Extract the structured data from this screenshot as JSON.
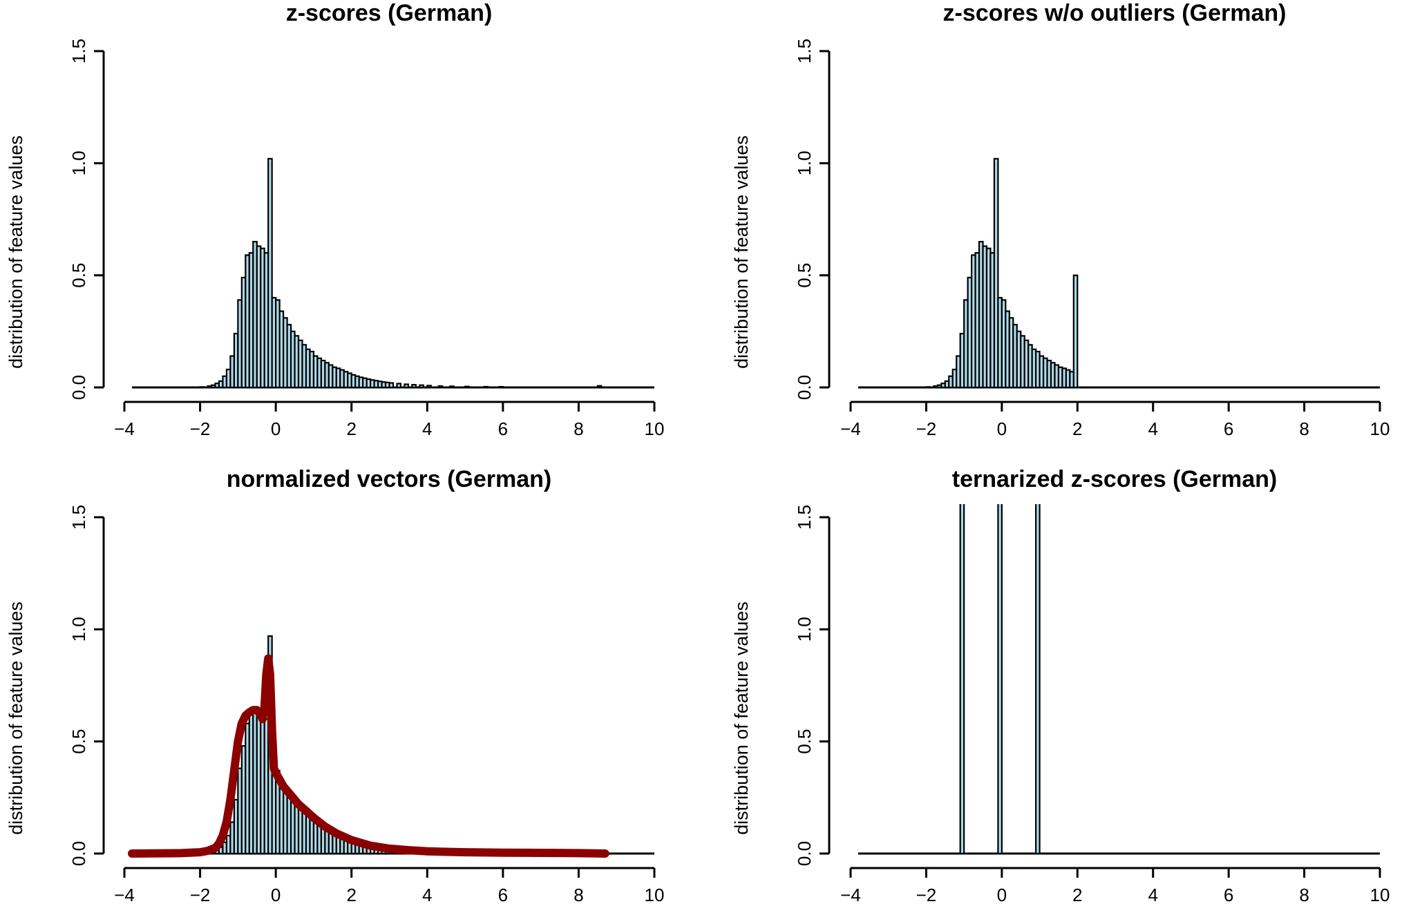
{
  "chart_data": [
    {
      "type": "bar",
      "title": "z-scores (German)",
      "xlabel": "",
      "ylabel": "distribution of feature values",
      "xlim": [
        -4,
        10
      ],
      "ylim": [
        0,
        1.5
      ],
      "xticks": [
        "−4",
        "−2",
        "0",
        "2",
        "4",
        "6",
        "8",
        "10"
      ],
      "yticks": [
        "0.0",
        "0.5",
        "1.0",
        "1.5"
      ],
      "bin_width": 0.1,
      "histogram": [
        {
          "x": -3.8,
          "y": 0.0
        },
        {
          "x": -2.0,
          "y": 0.002
        },
        {
          "x": -1.8,
          "y": 0.006
        },
        {
          "x": -1.7,
          "y": 0.01
        },
        {
          "x": -1.6,
          "y": 0.018
        },
        {
          "x": -1.5,
          "y": 0.028
        },
        {
          "x": -1.4,
          "y": 0.05
        },
        {
          "x": -1.3,
          "y": 0.08
        },
        {
          "x": -1.2,
          "y": 0.14
        },
        {
          "x": -1.1,
          "y": 0.24
        },
        {
          "x": -1.0,
          "y": 0.39
        },
        {
          "x": -0.9,
          "y": 0.49
        },
        {
          "x": -0.8,
          "y": 0.59
        },
        {
          "x": -0.7,
          "y": 0.6
        },
        {
          "x": -0.6,
          "y": 0.65
        },
        {
          "x": -0.5,
          "y": 0.63
        },
        {
          "x": -0.4,
          "y": 0.62
        },
        {
          "x": -0.3,
          "y": 0.6
        },
        {
          "x": -0.2,
          "y": 1.02
        },
        {
          "x": -0.1,
          "y": 0.4
        },
        {
          "x": 0.0,
          "y": 0.39
        },
        {
          "x": 0.1,
          "y": 0.34
        },
        {
          "x": 0.2,
          "y": 0.31
        },
        {
          "x": 0.3,
          "y": 0.28
        },
        {
          "x": 0.4,
          "y": 0.25
        },
        {
          "x": 0.5,
          "y": 0.23
        },
        {
          "x": 0.6,
          "y": 0.21
        },
        {
          "x": 0.7,
          "y": 0.19
        },
        {
          "x": 0.8,
          "y": 0.17
        },
        {
          "x": 0.9,
          "y": 0.16
        },
        {
          "x": 1.0,
          "y": 0.14
        },
        {
          "x": 1.1,
          "y": 0.13
        },
        {
          "x": 1.2,
          "y": 0.12
        },
        {
          "x": 1.3,
          "y": 0.11
        },
        {
          "x": 1.4,
          "y": 0.1
        },
        {
          "x": 1.5,
          "y": 0.09
        },
        {
          "x": 1.6,
          "y": 0.085
        },
        {
          "x": 1.7,
          "y": 0.078
        },
        {
          "x": 1.8,
          "y": 0.07
        },
        {
          "x": 1.9,
          "y": 0.063
        },
        {
          "x": 2.0,
          "y": 0.056
        },
        {
          "x": 2.1,
          "y": 0.05
        },
        {
          "x": 2.2,
          "y": 0.045
        },
        {
          "x": 2.3,
          "y": 0.041
        },
        {
          "x": 2.4,
          "y": 0.037
        },
        {
          "x": 2.5,
          "y": 0.033
        },
        {
          "x": 2.6,
          "y": 0.03
        },
        {
          "x": 2.7,
          "y": 0.027
        },
        {
          "x": 2.8,
          "y": 0.024
        },
        {
          "x": 2.9,
          "y": 0.022
        },
        {
          "x": 3.0,
          "y": 0.02
        },
        {
          "x": 3.2,
          "y": 0.017
        },
        {
          "x": 3.4,
          "y": 0.014
        },
        {
          "x": 3.6,
          "y": 0.012
        },
        {
          "x": 3.8,
          "y": 0.01
        },
        {
          "x": 4.0,
          "y": 0.008
        },
        {
          "x": 4.3,
          "y": 0.006
        },
        {
          "x": 4.6,
          "y": 0.005
        },
        {
          "x": 5.0,
          "y": 0.004
        },
        {
          "x": 5.5,
          "y": 0.003
        },
        {
          "x": 5.9,
          "y": 0.003
        },
        {
          "x": 8.5,
          "y": 0.007
        }
      ]
    },
    {
      "type": "bar",
      "title": "z-scores w/o outliers (German)",
      "xlabel": "",
      "ylabel": "distribution of feature values",
      "xlim": [
        -4,
        10
      ],
      "ylim": [
        0,
        1.5
      ],
      "xticks": [
        "−4",
        "−2",
        "0",
        "2",
        "4",
        "6",
        "8",
        "10"
      ],
      "yticks": [
        "0.0",
        "0.5",
        "1.0",
        "1.5"
      ],
      "bin_width": 0.1,
      "histogram": [
        {
          "x": -3.8,
          "y": 0.0
        },
        {
          "x": -2.0,
          "y": 0.002
        },
        {
          "x": -1.8,
          "y": 0.006
        },
        {
          "x": -1.7,
          "y": 0.01
        },
        {
          "x": -1.6,
          "y": 0.018
        },
        {
          "x": -1.5,
          "y": 0.028
        },
        {
          "x": -1.4,
          "y": 0.05
        },
        {
          "x": -1.3,
          "y": 0.08
        },
        {
          "x": -1.2,
          "y": 0.14
        },
        {
          "x": -1.1,
          "y": 0.24
        },
        {
          "x": -1.0,
          "y": 0.39
        },
        {
          "x": -0.9,
          "y": 0.49
        },
        {
          "x": -0.8,
          "y": 0.59
        },
        {
          "x": -0.7,
          "y": 0.6
        },
        {
          "x": -0.6,
          "y": 0.65
        },
        {
          "x": -0.5,
          "y": 0.63
        },
        {
          "x": -0.4,
          "y": 0.62
        },
        {
          "x": -0.3,
          "y": 0.6
        },
        {
          "x": -0.2,
          "y": 1.02
        },
        {
          "x": -0.1,
          "y": 0.4
        },
        {
          "x": 0.0,
          "y": 0.39
        },
        {
          "x": 0.1,
          "y": 0.34
        },
        {
          "x": 0.2,
          "y": 0.31
        },
        {
          "x": 0.3,
          "y": 0.28
        },
        {
          "x": 0.4,
          "y": 0.25
        },
        {
          "x": 0.5,
          "y": 0.23
        },
        {
          "x": 0.6,
          "y": 0.21
        },
        {
          "x": 0.7,
          "y": 0.19
        },
        {
          "x": 0.8,
          "y": 0.17
        },
        {
          "x": 0.9,
          "y": 0.16
        },
        {
          "x": 1.0,
          "y": 0.14
        },
        {
          "x": 1.1,
          "y": 0.13
        },
        {
          "x": 1.2,
          "y": 0.12
        },
        {
          "x": 1.3,
          "y": 0.11
        },
        {
          "x": 1.4,
          "y": 0.1
        },
        {
          "x": 1.5,
          "y": 0.09
        },
        {
          "x": 1.6,
          "y": 0.085
        },
        {
          "x": 1.7,
          "y": 0.078
        },
        {
          "x": 1.8,
          "y": 0.07
        },
        {
          "x": 1.9,
          "y": 0.5
        }
      ]
    },
    {
      "type": "bar",
      "title": "normalized vectors (German)",
      "xlabel": "",
      "ylabel": "distribution of feature values",
      "xlim": [
        -4,
        10
      ],
      "ylim": [
        0,
        1.5
      ],
      "xticks": [
        "−4",
        "−2",
        "0",
        "2",
        "4",
        "6",
        "8",
        "10"
      ],
      "yticks": [
        "0.0",
        "0.5",
        "1.0",
        "1.5"
      ],
      "bin_width": 0.1,
      "histogram": [
        {
          "x": -3.8,
          "y": 0.0
        },
        {
          "x": -2.0,
          "y": 0.002
        },
        {
          "x": -1.8,
          "y": 0.006
        },
        {
          "x": -1.7,
          "y": 0.01
        },
        {
          "x": -1.6,
          "y": 0.018
        },
        {
          "x": -1.5,
          "y": 0.028
        },
        {
          "x": -1.4,
          "y": 0.05
        },
        {
          "x": -1.3,
          "y": 0.08
        },
        {
          "x": -1.2,
          "y": 0.14
        },
        {
          "x": -1.1,
          "y": 0.24
        },
        {
          "x": -1.0,
          "y": 0.38
        },
        {
          "x": -0.9,
          "y": 0.48
        },
        {
          "x": -0.8,
          "y": 0.58
        },
        {
          "x": -0.7,
          "y": 0.62
        },
        {
          "x": -0.6,
          "y": 0.65
        },
        {
          "x": -0.5,
          "y": 0.64
        },
        {
          "x": -0.4,
          "y": 0.61
        },
        {
          "x": -0.3,
          "y": 0.6
        },
        {
          "x": -0.2,
          "y": 0.97
        },
        {
          "x": -0.1,
          "y": 0.4
        },
        {
          "x": 0.0,
          "y": 0.37
        },
        {
          "x": 0.1,
          "y": 0.33
        },
        {
          "x": 0.2,
          "y": 0.3
        },
        {
          "x": 0.3,
          "y": 0.27
        },
        {
          "x": 0.4,
          "y": 0.24
        },
        {
          "x": 0.5,
          "y": 0.22
        },
        {
          "x": 0.6,
          "y": 0.2
        },
        {
          "x": 0.7,
          "y": 0.18
        },
        {
          "x": 0.8,
          "y": 0.165
        },
        {
          "x": 0.9,
          "y": 0.15
        },
        {
          "x": 1.0,
          "y": 0.135
        },
        {
          "x": 1.1,
          "y": 0.125
        },
        {
          "x": 1.2,
          "y": 0.115
        },
        {
          "x": 1.3,
          "y": 0.105
        },
        {
          "x": 1.4,
          "y": 0.095
        },
        {
          "x": 1.5,
          "y": 0.088
        },
        {
          "x": 1.6,
          "y": 0.08
        },
        {
          "x": 1.7,
          "y": 0.073
        },
        {
          "x": 1.8,
          "y": 0.066
        },
        {
          "x": 1.9,
          "y": 0.06
        },
        {
          "x": 2.0,
          "y": 0.054
        },
        {
          "x": 2.1,
          "y": 0.049
        },
        {
          "x": 2.2,
          "y": 0.044
        },
        {
          "x": 2.3,
          "y": 0.04
        },
        {
          "x": 2.4,
          "y": 0.036
        },
        {
          "x": 2.5,
          "y": 0.032
        },
        {
          "x": 2.6,
          "y": 0.029
        },
        {
          "x": 2.7,
          "y": 0.026
        },
        {
          "x": 2.8,
          "y": 0.023
        },
        {
          "x": 2.9,
          "y": 0.021
        },
        {
          "x": 3.0,
          "y": 0.019
        },
        {
          "x": 3.2,
          "y": 0.016
        },
        {
          "x": 3.4,
          "y": 0.013
        },
        {
          "x": 3.6,
          "y": 0.011
        },
        {
          "x": 3.8,
          "y": 0.009
        },
        {
          "x": 4.0,
          "y": 0.008
        },
        {
          "x": 4.3,
          "y": 0.006
        },
        {
          "x": 4.6,
          "y": 0.005
        },
        {
          "x": 5.0,
          "y": 0.004
        },
        {
          "x": 5.5,
          "y": 0.003
        }
      ],
      "density_color": "#8b0000",
      "density": {
        "x": [
          -3.8,
          -2.5,
          -2.0,
          -1.8,
          -1.6,
          -1.5,
          -1.4,
          -1.3,
          -1.2,
          -1.1,
          -1.0,
          -0.9,
          -0.8,
          -0.7,
          -0.6,
          -0.5,
          -0.4,
          -0.35,
          -0.3,
          -0.25,
          -0.2,
          -0.15,
          -0.1,
          -0.05,
          0.0,
          0.2,
          0.4,
          0.6,
          0.8,
          1.0,
          1.3,
          1.6,
          2.0,
          2.5,
          3.0,
          3.5,
          4.0,
          5.0,
          6.0,
          7.0,
          8.0,
          8.7
        ],
        "y": [
          0.0,
          0.002,
          0.006,
          0.012,
          0.025,
          0.045,
          0.08,
          0.14,
          0.24,
          0.37,
          0.5,
          0.58,
          0.615,
          0.63,
          0.64,
          0.64,
          0.62,
          0.6,
          0.65,
          0.8,
          0.87,
          0.8,
          0.55,
          0.38,
          0.36,
          0.3,
          0.26,
          0.22,
          0.19,
          0.16,
          0.12,
          0.09,
          0.06,
          0.035,
          0.022,
          0.015,
          0.01,
          0.006,
          0.004,
          0.003,
          0.002,
          0.0
        ]
      }
    },
    {
      "type": "bar",
      "title": "ternarized z-scores (German)",
      "xlabel": "",
      "ylabel": "distribution of feature values",
      "xlim": [
        -4,
        10
      ],
      "ylim": [
        0,
        1.5
      ],
      "xticks": [
        "−4",
        "−2",
        "0",
        "2",
        "4",
        "6",
        "8",
        "10"
      ],
      "yticks": [
        "0.0",
        "0.5",
        "1.0",
        "1.5"
      ],
      "bin_width": 0.1,
      "histogram": [
        {
          "x": -3.8,
          "y": 0.0
        },
        {
          "x": -1.1,
          "y": 1.6
        },
        {
          "x": -0.1,
          "y": 1.6
        },
        {
          "x": 0.9,
          "y": 1.6
        }
      ]
    }
  ]
}
